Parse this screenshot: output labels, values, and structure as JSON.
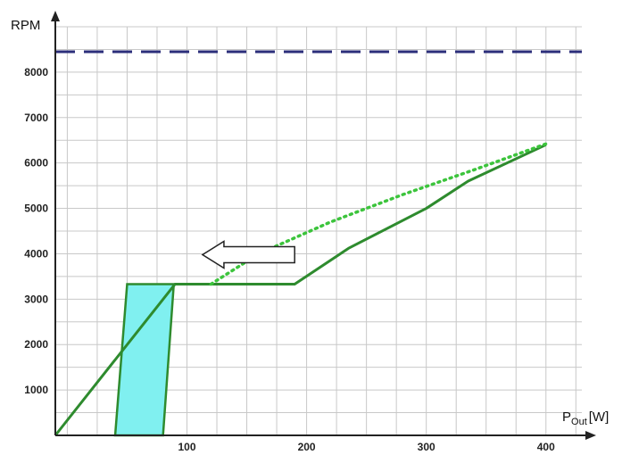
{
  "chart_data": {
    "type": "line",
    "title": "",
    "xlabel": "P",
    "xlabel_subscript": "Out",
    "xlabel_unit": "[W]",
    "ylabel": "RPM",
    "xlim": [
      -10,
      430
    ],
    "ylim": [
      0,
      9000
    ],
    "x_ticks": [
      100,
      200,
      300,
      400
    ],
    "y_ticks": [
      1000,
      2000,
      3000,
      4000,
      5000,
      6000,
      7000,
      8000
    ],
    "grid": true,
    "legend": "none",
    "series": [
      {
        "style": "dashed",
        "color": "#2b2e7a",
        "x": [
          -10,
          430
        ],
        "y": [
          8450,
          8450
        ]
      },
      {
        "style": "solid",
        "color": "#2e8b2e",
        "x": [
          -10,
          90,
          190,
          235,
          300,
          335,
          400
        ],
        "y": [
          0,
          3330,
          3330,
          4120,
          5000,
          5600,
          6400
        ]
      },
      {
        "style": "dotted",
        "color": "#3cc43c",
        "x": [
          120,
          160,
          220,
          280,
          340,
          400
        ],
        "y": [
          3330,
          4000,
          4700,
          5300,
          5850,
          6420
        ]
      }
    ],
    "regions": [
      {
        "fill": "#80f0f0",
        "stroke": "#2e8b2e",
        "x": [
          40,
          50,
          89,
          80
        ],
        "y": [
          0,
          3330,
          3330,
          0
        ]
      }
    ],
    "annotations": [
      {
        "type": "arrow",
        "direction": "left",
        "x_from": 190,
        "x_to": 113,
        "y": 3980,
        "fill": "#ffffff",
        "stroke": "#222222"
      }
    ],
    "colors": {
      "grid": "#c8c8c8",
      "axis": "#222222"
    }
  }
}
